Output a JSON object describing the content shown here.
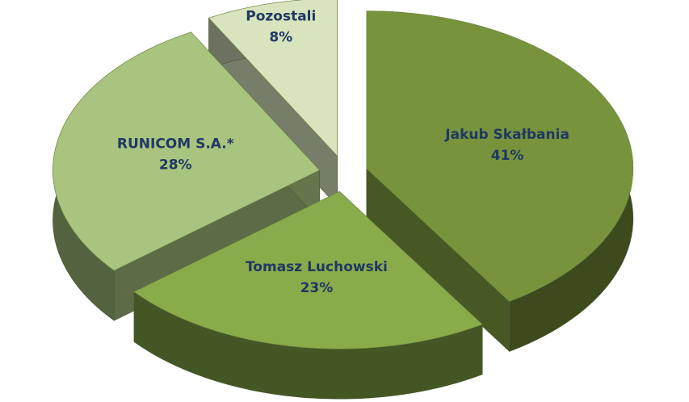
{
  "chart_data": {
    "type": "pie3d",
    "categories": [
      "Jakub Skałbania",
      "Tomasz Luchowski",
      "RUNICOM S.A.*",
      "Pozostali"
    ],
    "values": [
      41,
      23,
      28,
      8
    ],
    "value_labels": [
      "41%",
      "23%",
      "28%",
      "8%"
    ],
    "colors": [
      "#77933c",
      "#8aab4a",
      "#a9c47f",
      "#d7e4bd"
    ]
  }
}
